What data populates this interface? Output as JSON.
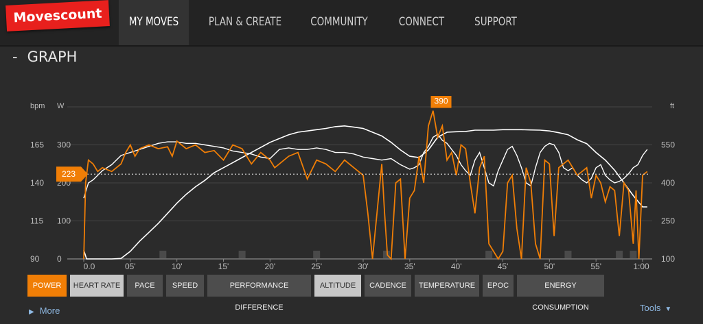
{
  "nav": {
    "logo": "Movescount",
    "items": [
      "MY MOVES",
      "PLAN & CREATE",
      "COMMUNITY",
      "CONNECT",
      "SUPPORT"
    ],
    "active": "MY MOVES"
  },
  "section": {
    "dash": "-",
    "title": "GRAPH"
  },
  "chart_data": {
    "type": "line",
    "left_axis_units": [
      "bpm",
      "W"
    ],
    "right_axis_unit": "ft",
    "bpm_ticks": [
      "165",
      "140",
      "115",
      "90"
    ],
    "watt_ticks": [
      "300",
      "200",
      "100",
      "0"
    ],
    "ft_ticks": [
      "550",
      "400",
      "250",
      "100"
    ],
    "x_ticks": [
      "0.0",
      "05'",
      "10'",
      "15'",
      "20'",
      "25'",
      "30'",
      "35'",
      "40'",
      "45'",
      "50'",
      "55'",
      "1:00"
    ],
    "x_minutes": [
      0,
      5,
      10,
      15,
      20,
      25,
      30,
      35,
      40,
      45,
      50,
      55,
      60
    ],
    "avg_power_marker": "223",
    "avg_power_value": 223,
    "max_power_marker": "390",
    "max_power_value": 390,
    "max_power_minute": 38,
    "colors": {
      "power": "#f07e06",
      "heart_rate": "#ffffff",
      "altitude": "#ffffff",
      "grid": "#454545"
    },
    "series": [
      {
        "name": "POWER",
        "unit": "W",
        "x": [
          0,
          0.2,
          0.5,
          1,
          1.5,
          2,
          3,
          4,
          4.5,
          5,
          5.5,
          6,
          7,
          8,
          9,
          9.5,
          10,
          11,
          12,
          13,
          14,
          15,
          16,
          17,
          18,
          19,
          20,
          20.5,
          21,
          22,
          23,
          24,
          25,
          26,
          27,
          28,
          29,
          30,
          30.5,
          31,
          32,
          32.3,
          32.6,
          33,
          33.5,
          34,
          34.5,
          35,
          35.5,
          36,
          36.5,
          37,
          37.5,
          38,
          38.5,
          39,
          39.5,
          40,
          40.5,
          41,
          41.5,
          42,
          42.5,
          43,
          43.5,
          44,
          44.5,
          45,
          45.5,
          46,
          46.5,
          47,
          47.5,
          48,
          48.5,
          49,
          49.5,
          50,
          50.5,
          51,
          52,
          53,
          54,
          54.5,
          55,
          55.5,
          56,
          56.5,
          57,
          57.5,
          58,
          58.5,
          59,
          59.3,
          59.6,
          60,
          60.5
        ],
        "values": [
          0,
          200,
          260,
          250,
          230,
          240,
          230,
          250,
          280,
          300,
          270,
          290,
          300,
          290,
          295,
          270,
          310,
          290,
          300,
          280,
          285,
          260,
          300,
          290,
          250,
          280,
          260,
          240,
          250,
          270,
          280,
          210,
          260,
          250,
          230,
          260,
          240,
          220,
          120,
          0,
          250,
          120,
          10,
          0,
          200,
          210,
          0,
          160,
          180,
          270,
          200,
          350,
          390,
          320,
          350,
          260,
          280,
          220,
          300,
          290,
          200,
          120,
          240,
          270,
          40,
          20,
          0,
          20,
          200,
          220,
          80,
          0,
          240,
          200,
          40,
          0,
          260,
          250,
          60,
          240,
          260,
          220,
          240,
          160,
          220,
          200,
          150,
          190,
          180,
          60,
          200,
          180,
          40,
          180,
          0,
          220,
          230
        ]
      },
      {
        "name": "HEART RATE",
        "unit": "bpm",
        "x": [
          0,
          0.5,
          1,
          2,
          3,
          4,
          5,
          6,
          7,
          8,
          9,
          10,
          11,
          12,
          13,
          14,
          15,
          16,
          17,
          18,
          19,
          20,
          21,
          22,
          23,
          24,
          25,
          26,
          27,
          28,
          29,
          30,
          31,
          32,
          33,
          34,
          35,
          35.5,
          36,
          36.5,
          37,
          37.5,
          38,
          38.5,
          39,
          39.5,
          40,
          40.5,
          41,
          41.5,
          42,
          42.5,
          43,
          43.5,
          44,
          44.5,
          45,
          45.5,
          46,
          46.5,
          47,
          47.5,
          48,
          48.5,
          49,
          49.5,
          50,
          50.5,
          51,
          51.5,
          52,
          52.5,
          53,
          53.5,
          54,
          54.5,
          55,
          55.5,
          56,
          56.5,
          57,
          57.5,
          58,
          58.5,
          59,
          59.5,
          60,
          60.5
        ],
        "values": [
          130,
          140,
          142,
          148,
          152,
          158,
          160,
          162,
          164,
          166,
          167,
          167,
          166,
          166,
          165,
          164,
          163,
          161,
          160,
          159,
          157,
          156,
          162,
          163,
          162,
          162,
          163,
          162,
          160,
          160,
          159,
          157,
          156,
          155,
          156,
          152,
          149,
          150,
          152,
          160,
          164,
          170,
          172,
          168,
          166,
          162,
          158,
          152,
          148,
          145,
          155,
          160,
          150,
          140,
          138,
          148,
          155,
          162,
          164,
          158,
          150,
          140,
          138,
          150,
          160,
          164,
          166,
          165,
          160,
          150,
          148,
          150,
          145,
          142,
          140,
          143,
          150,
          152,
          145,
          142,
          140,
          141,
          143,
          146,
          150,
          152,
          158,
          162
        ]
      },
      {
        "name": "ALTITUDE",
        "unit": "ft",
        "x": [
          0,
          0.3,
          1,
          2,
          3,
          4,
          5,
          6,
          7,
          8,
          9,
          10,
          11,
          12,
          13,
          14,
          15,
          16,
          17,
          18,
          19,
          20,
          21,
          22,
          23,
          24,
          25,
          26,
          27,
          28,
          29,
          30,
          31,
          32,
          33,
          34,
          35,
          36,
          37,
          38,
          39,
          40,
          41,
          42,
          43,
          44,
          45,
          46,
          47,
          48,
          49,
          50,
          51,
          52,
          53,
          54,
          55,
          56,
          57,
          58,
          59,
          60,
          60.5
        ],
        "values": [
          135,
          100,
          100,
          100,
          100,
          102,
          130,
          170,
          205,
          240,
          280,
          320,
          355,
          385,
          410,
          440,
          460,
          480,
          500,
          520,
          540,
          560,
          575,
          590,
          600,
          605,
          610,
          615,
          622,
          625,
          620,
          615,
          600,
          585,
          560,
          530,
          505,
          500,
          530,
          580,
          600,
          602,
          603,
          608,
          608,
          608,
          610,
          610,
          610,
          609,
          608,
          605,
          598,
          590,
          570,
          555,
          520,
          490,
          450,
          400,
          350,
          305,
          305
        ]
      }
    ]
  },
  "buttons": [
    {
      "label": "POWER",
      "state": "on"
    },
    {
      "label": "HEART RATE",
      "state": "selected"
    },
    {
      "label": "PACE",
      "state": "off"
    },
    {
      "label": "SPEED",
      "state": "off"
    },
    {
      "label": "PERFORMANCE DIFFERENCE",
      "state": "off"
    },
    {
      "label": "ALTITUDE",
      "state": "selected"
    },
    {
      "label": "CADENCE",
      "state": "off"
    },
    {
      "label": "TEMPERATURE",
      "state": "off"
    },
    {
      "label": "EPOC",
      "state": "off"
    },
    {
      "label": "ENERGY CONSUMPTION",
      "state": "off"
    }
  ],
  "links": {
    "more": "More",
    "tools": "Tools"
  }
}
